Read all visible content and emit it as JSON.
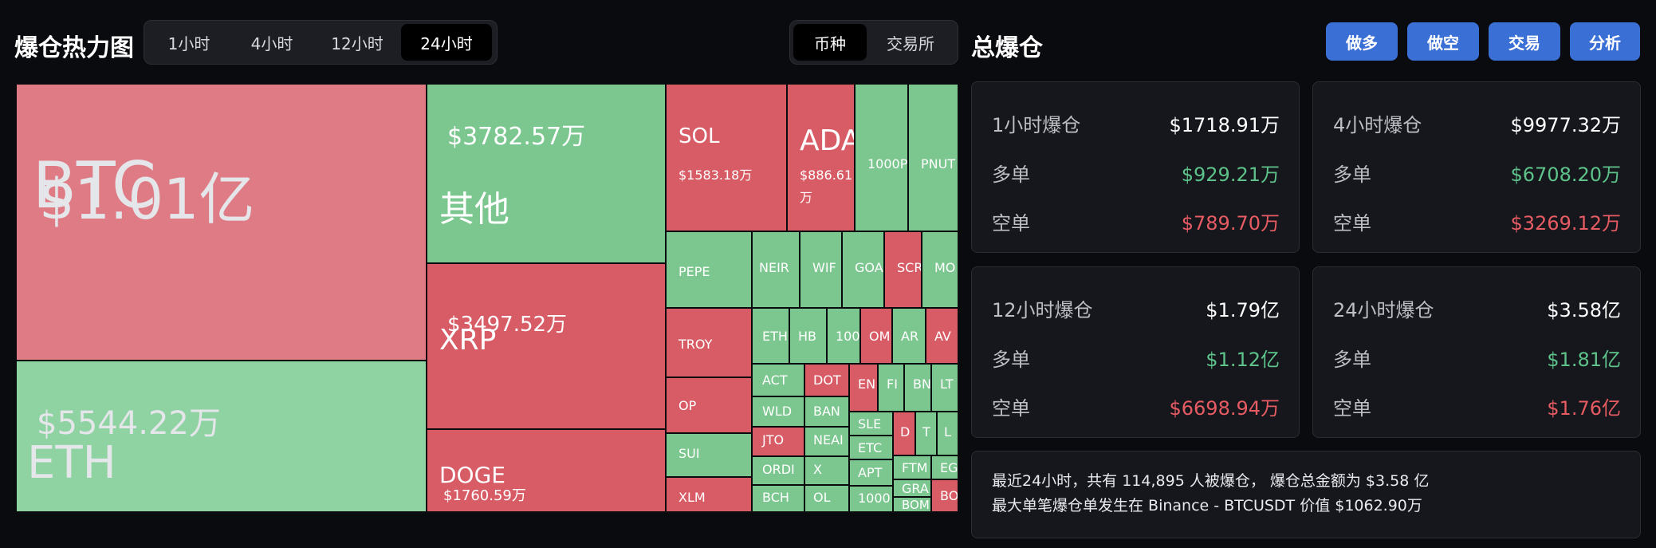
{
  "header": {
    "title": "爆仓热力图",
    "time_tabs": [
      "1小时",
      "4小时",
      "12小时",
      "24小时"
    ],
    "active_time": "24小时",
    "group_tabs": [
      "币种",
      "交易所"
    ],
    "active_group": "币种"
  },
  "right_header": {
    "title": "总爆仓",
    "buttons": [
      "做多",
      "做空",
      "交易",
      "分析"
    ]
  },
  "colors": {
    "long_green": "#7cc78f",
    "short_red": "#d85c66",
    "btc_red": "#df7b85",
    "eth_green": "#8fd3a3"
  },
  "treemap": [
    {
      "symbol": "BTC",
      "amount": "$1.01亿",
      "side": "short"
    },
    {
      "symbol": "ETH",
      "amount": "$5544.22万",
      "side": "long"
    },
    {
      "symbol": "其他",
      "amount": "$3782.57万",
      "side": "long"
    },
    {
      "symbol": "XRP",
      "amount": "$3497.52万",
      "side": "short"
    },
    {
      "symbol": "DOGE",
      "amount": "$1760.59万",
      "side": "short"
    },
    {
      "symbol": "SOL",
      "amount": "$1583.18万",
      "side": "short"
    },
    {
      "symbol": "ADA",
      "amount": "$886.61万",
      "side": "short"
    },
    {
      "symbol": "1000P",
      "amount": "",
      "side": "long"
    },
    {
      "symbol": "PNUT",
      "amount": "",
      "side": "long"
    },
    {
      "symbol": "PEPE",
      "amount": "",
      "side": "long"
    },
    {
      "symbol": "NEIR",
      "amount": "",
      "side": "long"
    },
    {
      "symbol": "WIF",
      "amount": "",
      "side": "long"
    },
    {
      "symbol": "GOA",
      "amount": "",
      "side": "long"
    },
    {
      "symbol": "SCR",
      "amount": "",
      "side": "short"
    },
    {
      "symbol": "MO",
      "amount": "",
      "side": "long"
    },
    {
      "symbol": "TROY",
      "amount": "",
      "side": "short"
    },
    {
      "symbol": "OP",
      "amount": "",
      "side": "short"
    },
    {
      "symbol": "SUI",
      "amount": "",
      "side": "long"
    },
    {
      "symbol": "XLM",
      "amount": "",
      "side": "short"
    },
    {
      "symbol": "ETH",
      "amount": "",
      "side": "long"
    },
    {
      "symbol": "HB",
      "amount": "",
      "side": "long"
    },
    {
      "symbol": "100",
      "amount": "",
      "side": "long"
    },
    {
      "symbol": "OM",
      "amount": "",
      "side": "short"
    },
    {
      "symbol": "AR",
      "amount": "",
      "side": "long"
    },
    {
      "symbol": "AV",
      "amount": "",
      "side": "short"
    },
    {
      "symbol": "ACT",
      "amount": "",
      "side": "long"
    },
    {
      "symbol": "DOT",
      "amount": "",
      "side": "short"
    },
    {
      "symbol": "EN",
      "amount": "",
      "side": "short"
    },
    {
      "symbol": "FI",
      "amount": "",
      "side": "long"
    },
    {
      "symbol": "BN",
      "amount": "",
      "side": "long"
    },
    {
      "symbol": "LT",
      "amount": "",
      "side": "long"
    },
    {
      "symbol": "WLD",
      "amount": "",
      "side": "long"
    },
    {
      "symbol": "BAN",
      "amount": "",
      "side": "long"
    },
    {
      "symbol": "SLE",
      "amount": "",
      "side": "long"
    },
    {
      "symbol": "D",
      "amount": "",
      "side": "short"
    },
    {
      "symbol": "T",
      "amount": "",
      "side": "long"
    },
    {
      "symbol": "L",
      "amount": "",
      "side": "long"
    },
    {
      "symbol": "JTO",
      "amount": "",
      "side": "short"
    },
    {
      "symbol": "NEAI",
      "amount": "",
      "side": "long"
    },
    {
      "symbol": "ETC",
      "amount": "",
      "side": "long"
    },
    {
      "symbol": "ORDI",
      "amount": "",
      "side": "long"
    },
    {
      "symbol": "X",
      "amount": "",
      "side": "long"
    },
    {
      "symbol": "FTM",
      "amount": "",
      "side": "long"
    },
    {
      "symbol": "EG",
      "amount": "",
      "side": "long"
    },
    {
      "symbol": "APT",
      "amount": "",
      "side": "long"
    },
    {
      "symbol": "GRA",
      "amount": "",
      "side": "long"
    },
    {
      "symbol": "BCH",
      "amount": "",
      "side": "long"
    },
    {
      "symbol": "OL",
      "amount": "",
      "side": "long"
    },
    {
      "symbol": "1000",
      "amount": "",
      "side": "long"
    },
    {
      "symbol": "BOM",
      "amount": "",
      "side": "long"
    },
    {
      "symbol": "BO",
      "amount": "",
      "side": "short"
    }
  ],
  "stats": [
    {
      "title": "1小时爆仓",
      "total": "$1718.91万",
      "long_label": "多单",
      "long": "$929.21万",
      "short_label": "空单",
      "short": "$789.70万"
    },
    {
      "title": "4小时爆仓",
      "total": "$9977.32万",
      "long_label": "多单",
      "long": "$6708.20万",
      "short_label": "空单",
      "short": "$3269.12万"
    },
    {
      "title": "12小时爆仓",
      "total": "$1.79亿",
      "long_label": "多单",
      "long": "$1.12亿",
      "short_label": "空单",
      "short": "$6698.94万"
    },
    {
      "title": "24小时爆仓",
      "total": "$3.58亿",
      "long_label": "多单",
      "long": "$1.81亿",
      "short_label": "空单",
      "short": "$1.76亿"
    }
  ],
  "summary": {
    "line1": "最近24小时，共有 114,895 人被爆仓， 爆仓总金额为 $3.58 亿",
    "line2": "最大单笔爆仓单发生在 Binance - BTCUSDT 价值 $1062.90万"
  }
}
